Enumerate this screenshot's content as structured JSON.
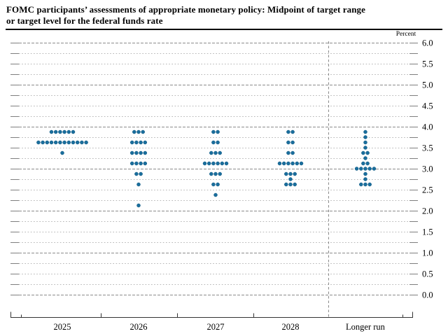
{
  "title": {
    "line1": "FOMC participants’ assessments of appropriate monetary policy: Midpoint of target range",
    "line2": "or target level for the federal funds rate"
  },
  "axis": {
    "unit_label": "Percent",
    "y_tick_labels": [
      "6.0",
      "5.5",
      "5.0",
      "4.5",
      "4.0",
      "3.5",
      "3.0",
      "2.5",
      "2.0",
      "1.5",
      "1.0",
      "0.5",
      "0.0"
    ],
    "x_labels": [
      "2025",
      "2026",
      "2027",
      "2028",
      "Longer run"
    ]
  },
  "chart_data": {
    "type": "scatter",
    "subtype": "fomc-dot-plot",
    "title": "FOMC participants’ assessments of appropriate monetary policy: Midpoint of target range or target level for the federal funds rate",
    "ylabel": "Percent",
    "ylim": [
      0.0,
      6.0
    ],
    "grid_step": 0.25,
    "label_step": 0.5,
    "grid_on": true,
    "legend": "none",
    "categories": [
      "2025",
      "2026",
      "2027",
      "2028",
      "Longer run"
    ],
    "separator_before_category": "Longer run",
    "dot_color": "#1a6e9d",
    "series": [
      {
        "category": "2025",
        "dots": [
          {
            "value": 3.875,
            "count": 6
          },
          {
            "value": 3.625,
            "count": 12
          },
          {
            "value": 3.375,
            "count": 1
          }
        ]
      },
      {
        "category": "2026",
        "dots": [
          {
            "value": 3.875,
            "count": 3
          },
          {
            "value": 3.625,
            "count": 4
          },
          {
            "value": 3.375,
            "count": 4
          },
          {
            "value": 3.125,
            "count": 4
          },
          {
            "value": 2.875,
            "count": 2
          },
          {
            "value": 2.625,
            "count": 1
          },
          {
            "value": 2.125,
            "count": 1
          }
        ]
      },
      {
        "category": "2027",
        "dots": [
          {
            "value": 3.875,
            "count": 2
          },
          {
            "value": 3.625,
            "count": 2
          },
          {
            "value": 3.375,
            "count": 3
          },
          {
            "value": 3.125,
            "count": 6
          },
          {
            "value": 2.875,
            "count": 3
          },
          {
            "value": 2.625,
            "count": 2
          },
          {
            "value": 2.375,
            "count": 1
          }
        ]
      },
      {
        "category": "2028",
        "dots": [
          {
            "value": 3.875,
            "count": 2
          },
          {
            "value": 3.625,
            "count": 2
          },
          {
            "value": 3.375,
            "count": 2
          },
          {
            "value": 3.125,
            "count": 6
          },
          {
            "value": 2.875,
            "count": 3
          },
          {
            "value": 2.75,
            "count": 1
          },
          {
            "value": 2.625,
            "count": 3
          }
        ]
      },
      {
        "category": "Longer run",
        "dots": [
          {
            "value": 3.875,
            "count": 1
          },
          {
            "value": 3.75,
            "count": 1
          },
          {
            "value": 3.625,
            "count": 1
          },
          {
            "value": 3.5,
            "count": 1
          },
          {
            "value": 3.375,
            "count": 2
          },
          {
            "value": 3.25,
            "count": 1
          },
          {
            "value": 3.125,
            "count": 2
          },
          {
            "value": 3.0,
            "count": 5
          },
          {
            "value": 2.875,
            "count": 1
          },
          {
            "value": 2.75,
            "count": 1
          },
          {
            "value": 2.625,
            "count": 3
          }
        ]
      }
    ]
  }
}
